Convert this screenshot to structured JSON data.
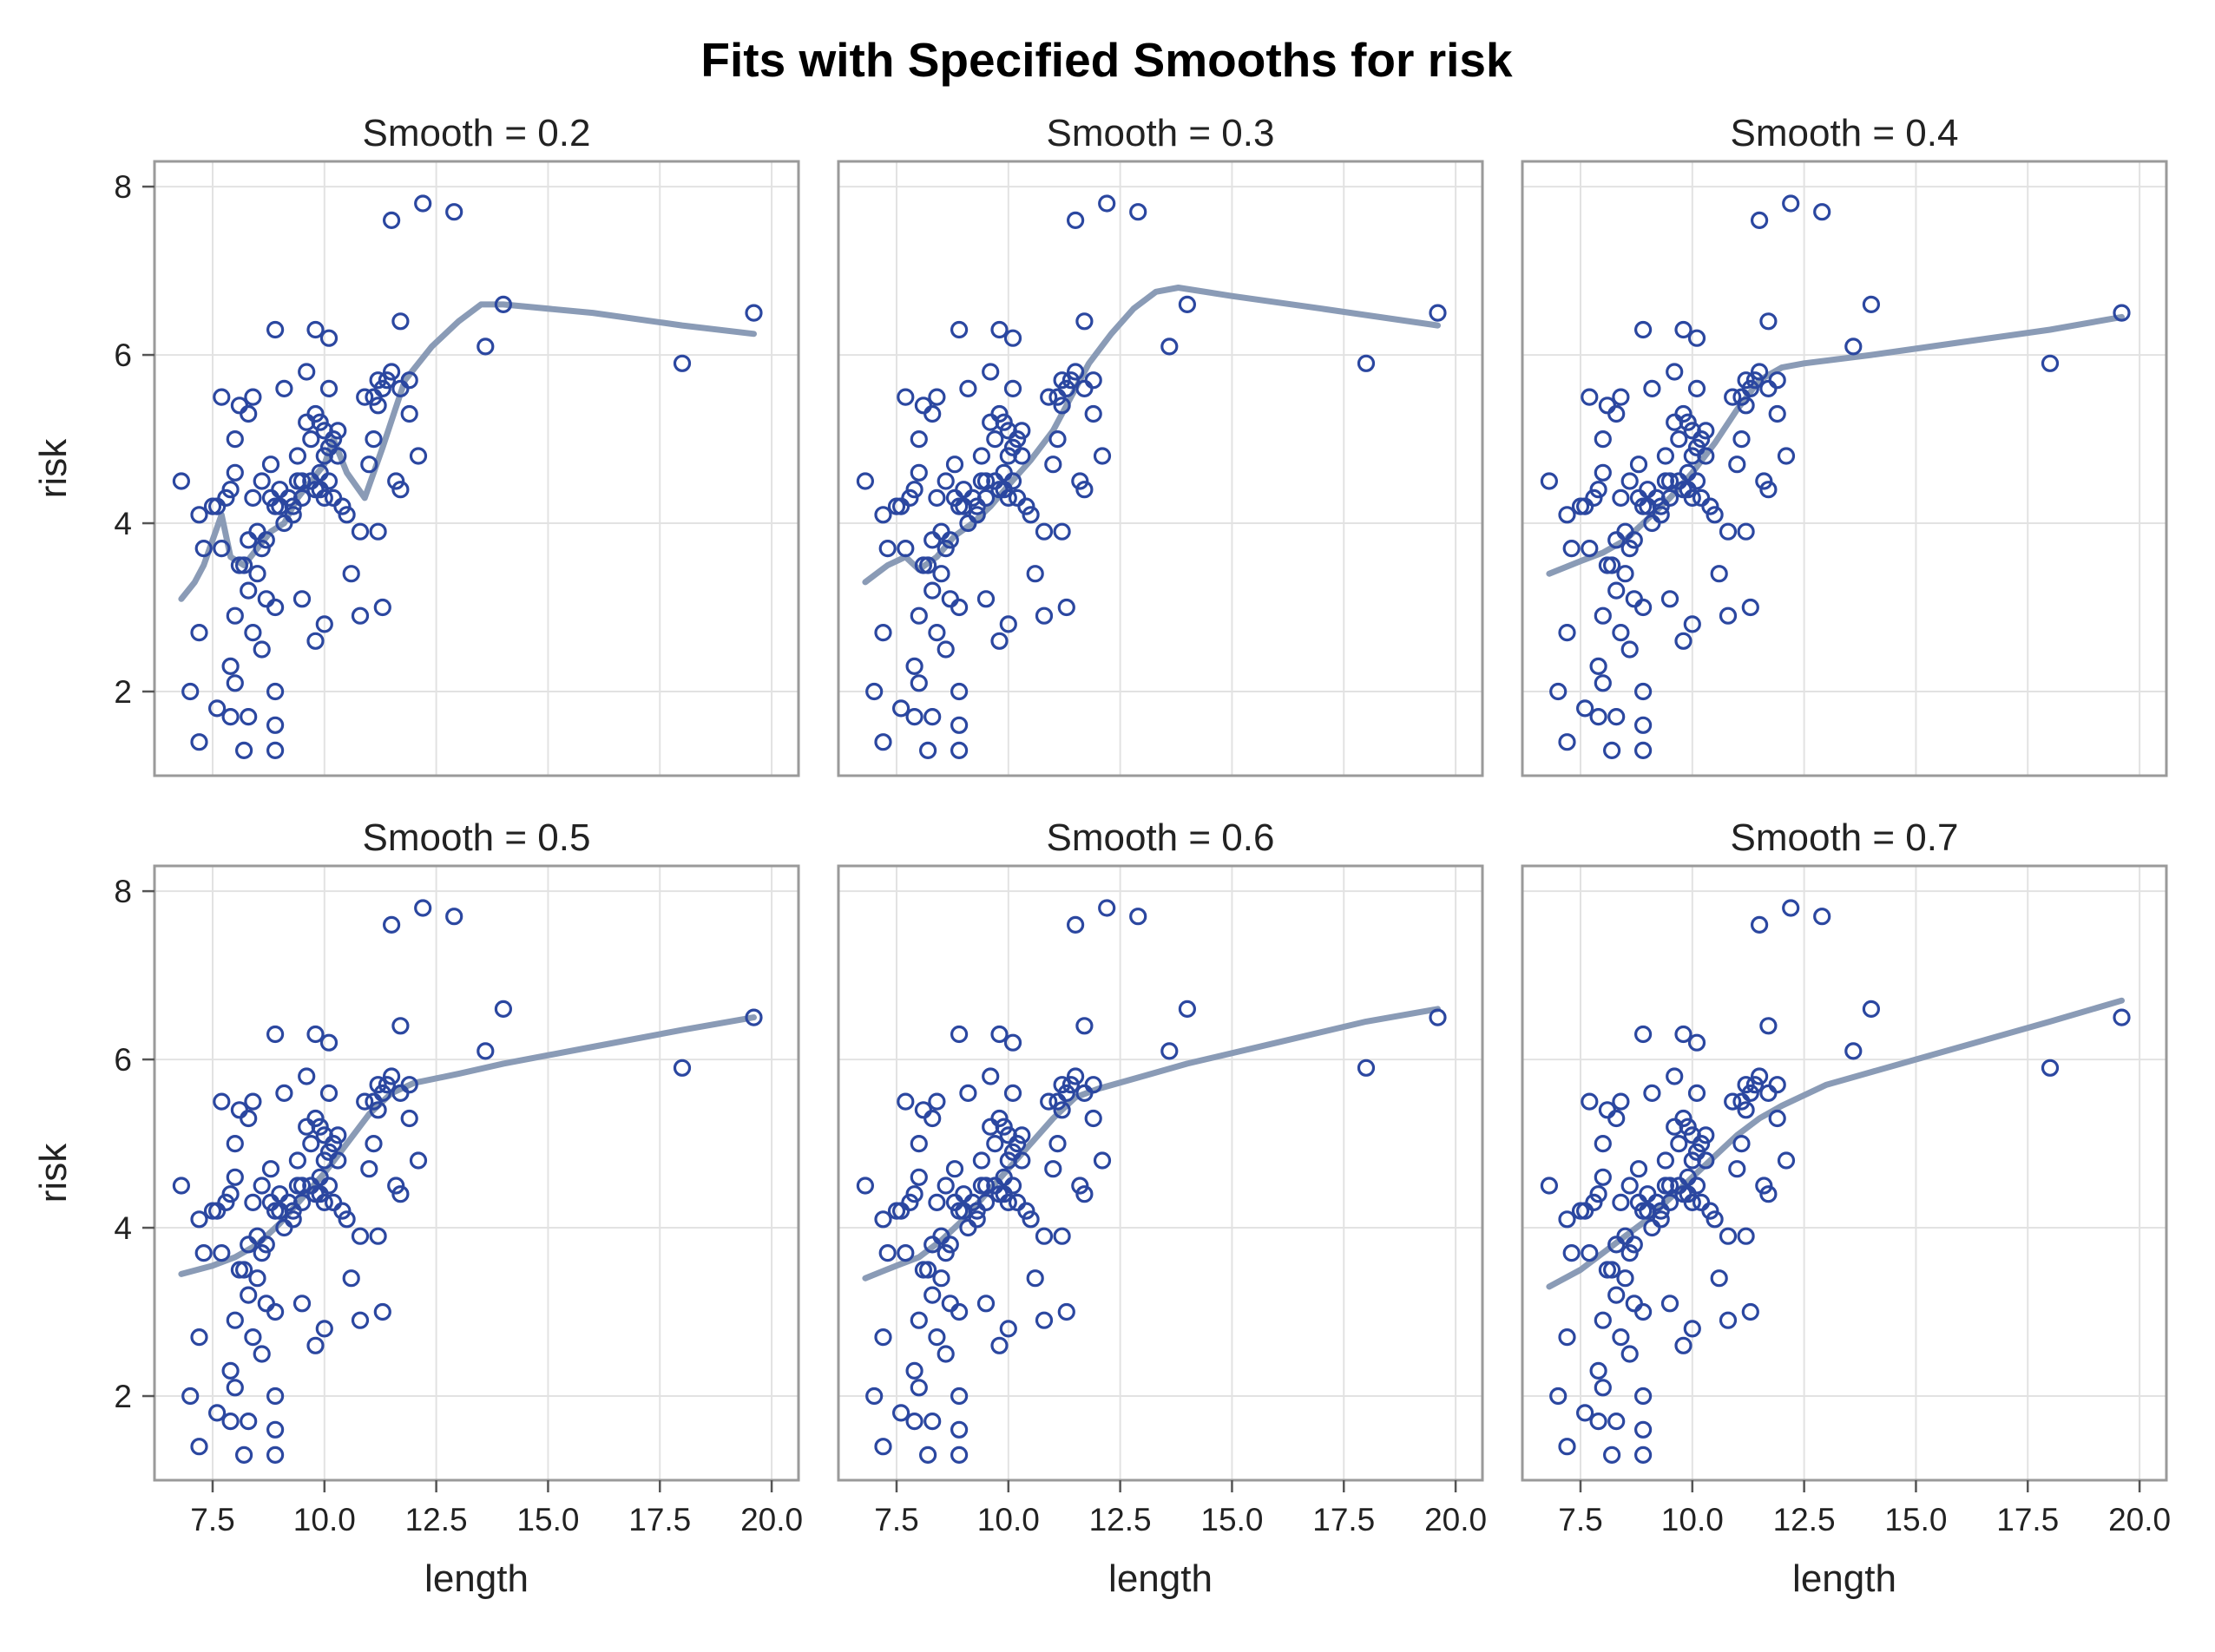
{
  "chart_data": {
    "type": "scatter",
    "title": "Fits with Specified Smooths for risk",
    "xlabel": "length",
    "ylabel": "risk",
    "xlim": [
      6.2,
      20.6
    ],
    "ylim": [
      1.0,
      8.3
    ],
    "xticks": [
      "7.5",
      "10.0",
      "12.5",
      "15.0",
      "17.5",
      "20.0"
    ],
    "yticks": [
      "2",
      "4",
      "6",
      "8"
    ],
    "grid": true,
    "layout": "2 rows x 3 columns",
    "colors": {
      "points": "#2b47a0",
      "fit": "#8a9bb6",
      "frame": "#9a9a9a",
      "grid": "#e2e2e2"
    },
    "points": [
      [
        6.8,
        4.5
      ],
      [
        7.2,
        4.1
      ],
      [
        7.3,
        3.7
      ],
      [
        7.5,
        4.2
      ],
      [
        7.6,
        4.2
      ],
      [
        7.7,
        3.7
      ],
      [
        7.7,
        5.5
      ],
      [
        7.8,
        4.3
      ],
      [
        7.9,
        4.4
      ],
      [
        8.0,
        4.6
      ],
      [
        8.0,
        5.0
      ],
      [
        8.0,
        2.9
      ],
      [
        8.1,
        5.4
      ],
      [
        8.1,
        3.5
      ],
      [
        8.2,
        3.5
      ],
      [
        8.3,
        5.3
      ],
      [
        8.3,
        3.2
      ],
      [
        8.3,
        3.8
      ],
      [
        8.4,
        5.5
      ],
      [
        8.4,
        4.3
      ],
      [
        8.4,
        2.7
      ],
      [
        8.5,
        3.4
      ],
      [
        8.5,
        3.9
      ],
      [
        8.6,
        2.5
      ],
      [
        8.6,
        3.7
      ],
      [
        8.6,
        4.5
      ],
      [
        8.7,
        3.8
      ],
      [
        8.7,
        3.1
      ],
      [
        8.8,
        4.3
      ],
      [
        8.8,
        4.7
      ],
      [
        8.9,
        4.2
      ],
      [
        8.9,
        6.3
      ],
      [
        8.9,
        3.0
      ],
      [
        9.0,
        4.2
      ],
      [
        9.0,
        4.4
      ],
      [
        9.1,
        5.6
      ],
      [
        9.1,
        4.0
      ],
      [
        9.2,
        4.3
      ],
      [
        9.3,
        4.2
      ],
      [
        9.3,
        4.1
      ],
      [
        9.4,
        4.5
      ],
      [
        9.4,
        4.8
      ],
      [
        9.5,
        4.5
      ],
      [
        9.5,
        4.3
      ],
      [
        9.5,
        3.1
      ],
      [
        9.6,
        5.8
      ],
      [
        9.6,
        5.2
      ],
      [
        9.7,
        4.5
      ],
      [
        9.7,
        5.0
      ],
      [
        9.8,
        6.3
      ],
      [
        9.8,
        5.3
      ],
      [
        9.8,
        4.4
      ],
      [
        9.8,
        2.6
      ],
      [
        9.9,
        5.2
      ],
      [
        9.9,
        4.6
      ],
      [
        9.9,
        4.4
      ],
      [
        10.0,
        5.1
      ],
      [
        10.0,
        4.8
      ],
      [
        10.0,
        4.3
      ],
      [
        10.0,
        2.8
      ],
      [
        10.1,
        6.2
      ],
      [
        10.1,
        5.6
      ],
      [
        10.1,
        4.5
      ],
      [
        10.1,
        4.9
      ],
      [
        10.2,
        5.0
      ],
      [
        10.2,
        4.3
      ],
      [
        10.3,
        5.1
      ],
      [
        10.3,
        4.8
      ],
      [
        10.4,
        4.2
      ],
      [
        10.5,
        4.1
      ],
      [
        10.6,
        3.4
      ],
      [
        10.8,
        3.9
      ],
      [
        10.8,
        2.9
      ],
      [
        10.9,
        5.5
      ],
      [
        11.0,
        4.7
      ],
      [
        11.1,
        5.5
      ],
      [
        11.1,
        5.0
      ],
      [
        11.2,
        3.9
      ],
      [
        11.2,
        5.7
      ],
      [
        11.2,
        5.4
      ],
      [
        11.3,
        5.6
      ],
      [
        11.3,
        3.0
      ],
      [
        11.4,
        5.7
      ],
      [
        11.5,
        5.8
      ],
      [
        11.5,
        7.6
      ],
      [
        11.6,
        4.5
      ],
      [
        11.7,
        5.6
      ],
      [
        11.7,
        6.4
      ],
      [
        11.7,
        4.4
      ],
      [
        11.9,
        5.3
      ],
      [
        11.9,
        5.7
      ],
      [
        12.1,
        4.8
      ],
      [
        12.2,
        7.8
      ],
      [
        12.9,
        7.7
      ],
      [
        13.6,
        6.1
      ],
      [
        14.0,
        6.6
      ],
      [
        18.0,
        5.9
      ],
      [
        19.6,
        6.5
      ],
      [
        7.2,
        2.7
      ],
      [
        7.0,
        2.0
      ],
      [
        7.2,
        1.4
      ],
      [
        7.6,
        1.8
      ],
      [
        7.9,
        2.3
      ],
      [
        8.0,
        2.1
      ],
      [
        7.9,
        1.7
      ],
      [
        8.3,
        1.7
      ],
      [
        8.2,
        1.3
      ],
      [
        8.9,
        2.0
      ],
      [
        8.9,
        1.6
      ],
      [
        8.9,
        1.3
      ]
    ],
    "panels": [
      {
        "title": "Smooth = 0.2",
        "fit": [
          [
            6.8,
            3.1
          ],
          [
            7.1,
            3.3
          ],
          [
            7.3,
            3.5
          ],
          [
            7.5,
            3.8
          ],
          [
            7.7,
            4.1
          ],
          [
            7.9,
            3.6
          ],
          [
            8.2,
            3.5
          ],
          [
            8.5,
            3.7
          ],
          [
            8.8,
            3.9
          ],
          [
            9.1,
            4.0
          ],
          [
            9.4,
            4.3
          ],
          [
            9.7,
            4.5
          ],
          [
            10.0,
            4.7
          ],
          [
            10.2,
            5.0
          ],
          [
            10.5,
            4.6
          ],
          [
            10.9,
            4.3
          ],
          [
            11.3,
            4.9
          ],
          [
            11.8,
            5.7
          ],
          [
            12.4,
            6.1
          ],
          [
            13.0,
            6.4
          ],
          [
            13.5,
            6.6
          ],
          [
            14.0,
            6.6
          ],
          [
            16.0,
            6.5
          ],
          [
            18.0,
            6.35
          ],
          [
            19.6,
            6.25
          ]
        ]
      },
      {
        "title": "Smooth = 0.3",
        "fit": [
          [
            6.8,
            3.3
          ],
          [
            7.3,
            3.5
          ],
          [
            7.7,
            3.6
          ],
          [
            8.0,
            3.45
          ],
          [
            8.4,
            3.6
          ],
          [
            8.8,
            3.85
          ],
          [
            9.2,
            4.0
          ],
          [
            9.6,
            4.2
          ],
          [
            10.0,
            4.45
          ],
          [
            10.5,
            4.75
          ],
          [
            11.0,
            5.1
          ],
          [
            11.4,
            5.5
          ],
          [
            11.8,
            5.9
          ],
          [
            12.3,
            6.25
          ],
          [
            12.8,
            6.55
          ],
          [
            13.3,
            6.75
          ],
          [
            13.8,
            6.8
          ],
          [
            15.0,
            6.7
          ],
          [
            17.0,
            6.55
          ],
          [
            19.6,
            6.35
          ]
        ]
      },
      {
        "title": "Smooth = 0.4",
        "fit": [
          [
            6.8,
            3.4
          ],
          [
            7.5,
            3.55
          ],
          [
            8.0,
            3.65
          ],
          [
            8.5,
            3.8
          ],
          [
            9.0,
            4.05
          ],
          [
            9.5,
            4.3
          ],
          [
            10.0,
            4.6
          ],
          [
            10.5,
            4.95
          ],
          [
            11.0,
            5.35
          ],
          [
            11.5,
            5.7
          ],
          [
            12.0,
            5.85
          ],
          [
            12.5,
            5.9
          ],
          [
            14.0,
            6.0
          ],
          [
            16.0,
            6.15
          ],
          [
            18.0,
            6.3
          ],
          [
            19.6,
            6.45
          ]
        ]
      },
      {
        "title": "Smooth = 0.5",
        "fit": [
          [
            6.8,
            3.45
          ],
          [
            7.5,
            3.55
          ],
          [
            8.0,
            3.65
          ],
          [
            8.5,
            3.8
          ],
          [
            9.0,
            4.05
          ],
          [
            9.5,
            4.35
          ],
          [
            10.0,
            4.65
          ],
          [
            10.5,
            5.0
          ],
          [
            11.0,
            5.35
          ],
          [
            11.5,
            5.6
          ],
          [
            12.0,
            5.72
          ],
          [
            13.0,
            5.83
          ],
          [
            14.0,
            5.95
          ],
          [
            16.0,
            6.15
          ],
          [
            18.0,
            6.35
          ],
          [
            19.6,
            6.5
          ]
        ]
      },
      {
        "title": "Smooth = 0.6",
        "fit": [
          [
            6.8,
            3.4
          ],
          [
            7.5,
            3.55
          ],
          [
            8.0,
            3.65
          ],
          [
            8.5,
            3.85
          ],
          [
            9.0,
            4.1
          ],
          [
            9.5,
            4.4
          ],
          [
            10.0,
            4.7
          ],
          [
            10.5,
            5.0
          ],
          [
            11.0,
            5.3
          ],
          [
            11.5,
            5.55
          ],
          [
            12.0,
            5.65
          ],
          [
            13.0,
            5.8
          ],
          [
            14.0,
            5.95
          ],
          [
            16.0,
            6.2
          ],
          [
            18.0,
            6.45
          ],
          [
            19.6,
            6.6
          ]
        ]
      },
      {
        "title": "Smooth = 0.7",
        "fit": [
          [
            6.8,
            3.3
          ],
          [
            7.5,
            3.5
          ],
          [
            8.0,
            3.7
          ],
          [
            8.5,
            3.9
          ],
          [
            9.0,
            4.1
          ],
          [
            9.5,
            4.35
          ],
          [
            10.0,
            4.6
          ],
          [
            10.5,
            4.85
          ],
          [
            11.0,
            5.1
          ],
          [
            11.5,
            5.3
          ],
          [
            12.0,
            5.45
          ],
          [
            13.0,
            5.7
          ],
          [
            14.0,
            5.85
          ],
          [
            16.0,
            6.15
          ],
          [
            18.0,
            6.45
          ],
          [
            19.6,
            6.7
          ]
        ]
      }
    ]
  }
}
